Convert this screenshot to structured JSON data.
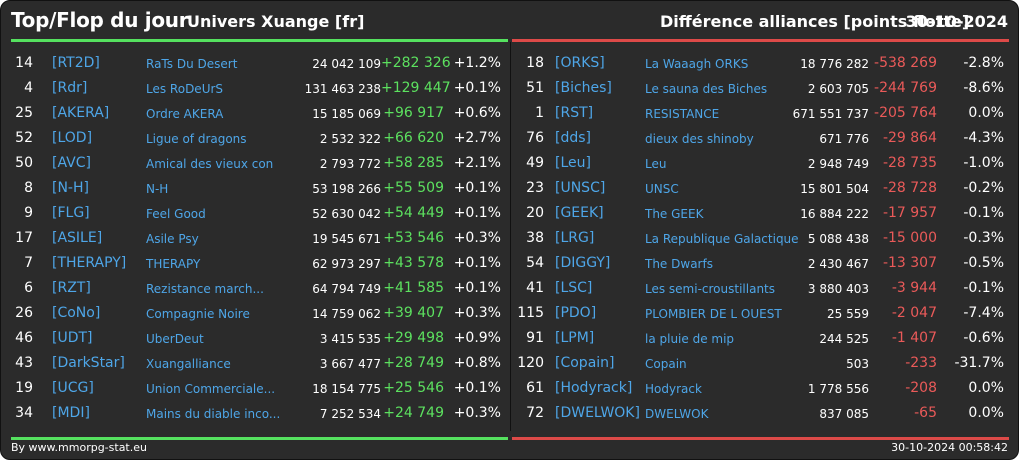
{
  "header": {
    "title": "Top/Flop du jour",
    "universe": "Univers Xuange [fr]",
    "metric": "Différence alliances [points flotte]",
    "date": "30-10-2024"
  },
  "colors": {
    "top_accent": "#55e15f",
    "flop_accent": "#dd4a48",
    "link": "#4ea6e8"
  },
  "top": [
    {
      "rank": "14",
      "tag": "[RT2D]",
      "name": "RaTs Du Desert",
      "points": "24 042 109",
      "diff": "+282 326",
      "pct": "+1.2%"
    },
    {
      "rank": "4",
      "tag": "[Rdr]",
      "name": "Les RoDeUrS",
      "points": "131 463 238",
      "diff": "+129 447",
      "pct": "+0.1%"
    },
    {
      "rank": "25",
      "tag": "[AKERA]",
      "name": "Ordre AKERA",
      "points": "15 185 069",
      "diff": "+96 917",
      "pct": "+0.6%"
    },
    {
      "rank": "52",
      "tag": "[LOD]",
      "name": "Ligue of dragons",
      "points": "2 532 322",
      "diff": "+66 620",
      "pct": "+2.7%"
    },
    {
      "rank": "50",
      "tag": "[AVC]",
      "name": "Amical des vieux con",
      "points": "2 793 772",
      "diff": "+58 285",
      "pct": "+2.1%"
    },
    {
      "rank": "8",
      "tag": "[N-H]",
      "name": "N-H",
      "points": "53 198 266",
      "diff": "+55 509",
      "pct": "+0.1%"
    },
    {
      "rank": "9",
      "tag": "[FLG]",
      "name": "Feel Good",
      "points": "52 630 042",
      "diff": "+54 449",
      "pct": "+0.1%"
    },
    {
      "rank": "17",
      "tag": "[ASILE]",
      "name": "Asile Psy",
      "points": "19 545 671",
      "diff": "+53 546",
      "pct": "+0.3%"
    },
    {
      "rank": "7",
      "tag": "[THERAPY]",
      "name": "THERAPY",
      "points": "62 973 297",
      "diff": "+43 578",
      "pct": "+0.1%"
    },
    {
      "rank": "6",
      "tag": "[RZT]",
      "name": "Rezistance march...",
      "points": "64 794 749",
      "diff": "+41 585",
      "pct": "+0.1%"
    },
    {
      "rank": "26",
      "tag": "[CoNo]",
      "name": "Compagnie Noire",
      "points": "14 759 062",
      "diff": "+39 407",
      "pct": "+0.3%"
    },
    {
      "rank": "46",
      "tag": "[UDT]",
      "name": "UberDeut",
      "points": "3 415 535",
      "diff": "+29 498",
      "pct": "+0.9%"
    },
    {
      "rank": "43",
      "tag": "[DarkStar]",
      "name": "Xuangalliance",
      "points": "3 667 477",
      "diff": "+28 749",
      "pct": "+0.8%"
    },
    {
      "rank": "19",
      "tag": "[UCG]",
      "name": "Union Commerciale...",
      "points": "18 154 775",
      "diff": "+25 546",
      "pct": "+0.1%"
    },
    {
      "rank": "34",
      "tag": "[MDI]",
      "name": "Mains du diable inco...",
      "points": "7 252 534",
      "diff": "+24 749",
      "pct": "+0.3%"
    }
  ],
  "flop": [
    {
      "rank": "18",
      "tag": "[ORKS]",
      "name": "La Waaagh ORKS",
      "points": "18 776 282",
      "diff": "-538 269",
      "pct": "-2.8%"
    },
    {
      "rank": "51",
      "tag": "[Biches]",
      "name": "Le sauna des Biches",
      "points": "2 603 705",
      "diff": "-244 769",
      "pct": "-8.6%"
    },
    {
      "rank": "1",
      "tag": "[RST]",
      "name": "RESISTANCE",
      "points": "671 551 737",
      "diff": "-205 764",
      "pct": "0.0%"
    },
    {
      "rank": "76",
      "tag": "[dds]",
      "name": "dieux des shinoby",
      "points": "671 776",
      "diff": "-29 864",
      "pct": "-4.3%"
    },
    {
      "rank": "49",
      "tag": "[Leu]",
      "name": "Leu",
      "points": "2 948 749",
      "diff": "-28 735",
      "pct": "-1.0%"
    },
    {
      "rank": "23",
      "tag": "[UNSC]",
      "name": "UNSC",
      "points": "15 801 504",
      "diff": "-28 728",
      "pct": "-0.2%"
    },
    {
      "rank": "20",
      "tag": "[GEEK]",
      "name": "The GEEK",
      "points": "16 884 222",
      "diff": "-17 957",
      "pct": "-0.1%"
    },
    {
      "rank": "38",
      "tag": "[LRG]",
      "name": "La Republique Galactique",
      "points": "5 088 438",
      "diff": "-15 000",
      "pct": "-0.3%"
    },
    {
      "rank": "54",
      "tag": "[DIGGY]",
      "name": "The Dwarfs",
      "points": "2 430 467",
      "diff": "-13 307",
      "pct": "-0.5%"
    },
    {
      "rank": "41",
      "tag": "[LSC]",
      "name": "Les semi-croustillants",
      "points": "3 880 403",
      "diff": "-3 944",
      "pct": "-0.1%"
    },
    {
      "rank": "115",
      "tag": "[PDO]",
      "name": "PLOMBIER DE L OUEST",
      "points": "25 559",
      "diff": "-2 047",
      "pct": "-7.4%"
    },
    {
      "rank": "91",
      "tag": "[LPM]",
      "name": "la pluie de mip",
      "points": "244 525",
      "diff": "-1 407",
      "pct": "-0.6%"
    },
    {
      "rank": "120",
      "tag": "[Copain]",
      "name": "Copain",
      "points": "503",
      "diff": "-233",
      "pct": "-31.7%"
    },
    {
      "rank": "61",
      "tag": "[Hodyrack]",
      "name": "Hodyrack",
      "points": "1 778 556",
      "diff": "-208",
      "pct": "0.0%"
    },
    {
      "rank": "72",
      "tag": "[DWELWOK]",
      "name": "DWELWOK",
      "points": "837 085",
      "diff": "-65",
      "pct": "0.0%"
    }
  ],
  "footer": {
    "credit": "By www.mmorpg-stat.eu",
    "timestamp": "30-10-2024 00:58:42"
  }
}
